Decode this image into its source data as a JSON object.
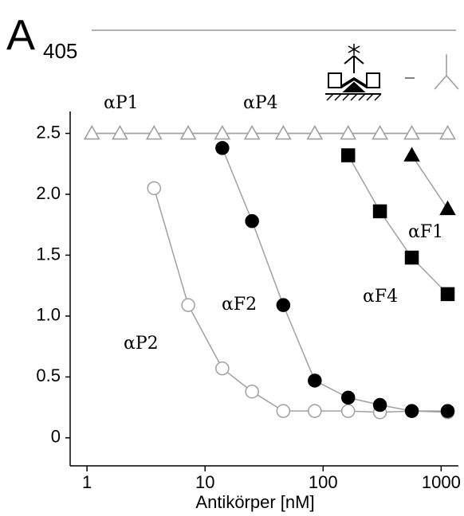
{
  "chart_data": {
    "type": "line",
    "title": "A",
    "title_subscript": "405",
    "x_label": "Antikörper [nM]",
    "x": [
      1.1,
      1.9,
      3.7,
      7.2,
      14,
      25,
      46,
      85,
      163,
      303,
      564,
      1135
    ],
    "log_x": true,
    "xlim": [
      0.72,
      1400
    ],
    "xticks": [
      1,
      10,
      100,
      1000
    ],
    "ylim": [
      -0.23,
      2.68
    ],
    "yticks": [
      0,
      0.5,
      {
        "value": 1,
        "label": "1.0"
      },
      1.5,
      {
        "value": 2,
        "label": "2.0"
      },
      2.5
    ],
    "line_color": "#a0a0a0",
    "series": [
      {
        "name": "αP2",
        "marker": "circle-open",
        "color": "#a0a0a0",
        "values": [
          null,
          null,
          2.05,
          1.09,
          0.57,
          0.38,
          0.22,
          0.22,
          0.22,
          0.21,
          0.22,
          0.21
        ]
      },
      {
        "name": "αF2",
        "marker": "circle",
        "color": "#000000",
        "values": [
          null,
          null,
          null,
          null,
          2.38,
          1.78,
          1.09,
          0.47,
          0.33,
          0.27,
          0.22,
          0.22
        ]
      },
      {
        "name": "αF4",
        "marker": "square",
        "color": "#000000",
        "values": [
          null,
          null,
          null,
          null,
          null,
          null,
          null,
          null,
          2.32,
          1.86,
          1.48,
          1.18
        ]
      },
      {
        "name": "αF1",
        "marker": "triangle",
        "color": "#000000",
        "values": [
          null,
          null,
          null,
          null,
          null,
          null,
          null,
          null,
          null,
          null,
          2.32,
          1.88
        ]
      },
      {
        "name": "αP1",
        "marker": "triangle-open",
        "color": "#a0a0a0",
        "values": [
          2.5,
          2.5,
          2.5,
          2.5,
          2.5,
          2.5,
          2.5,
          2.5,
          2.5,
          2.5,
          2.5,
          2.5
        ]
      },
      {
        "name": "αP4",
        "marker": "triangle-open",
        "color": "#a0a0a0",
        "values": [
          2.5,
          2.5,
          2.5,
          2.5,
          2.5,
          2.5,
          2.5,
          2.5,
          2.5,
          2.5,
          2.5,
          2.5
        ]
      }
    ]
  }
}
